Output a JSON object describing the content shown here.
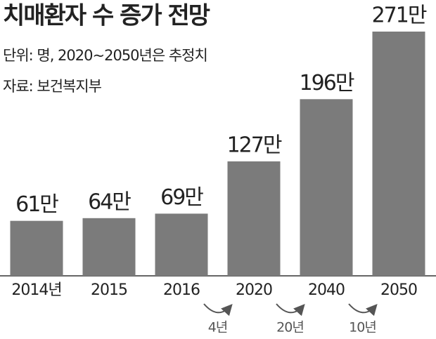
{
  "chart_data": {
    "type": "bar",
    "title": "치매환자 수 증가 전망",
    "subtitle": [
      "단위: 명, 2020~2050년은 추정치",
      "자료: 보건복지부"
    ],
    "categories": [
      "2014년",
      "2015",
      "2016",
      "2020",
      "2040",
      "2050"
    ],
    "values": [
      61,
      64,
      69,
      127,
      196,
      271
    ],
    "value_labels": [
      "61만",
      "64만",
      "69만",
      "127만",
      "196만",
      "271만"
    ],
    "color": "#7b7b7b",
    "annotations": [
      "4년",
      "20년",
      "10년"
    ]
  }
}
